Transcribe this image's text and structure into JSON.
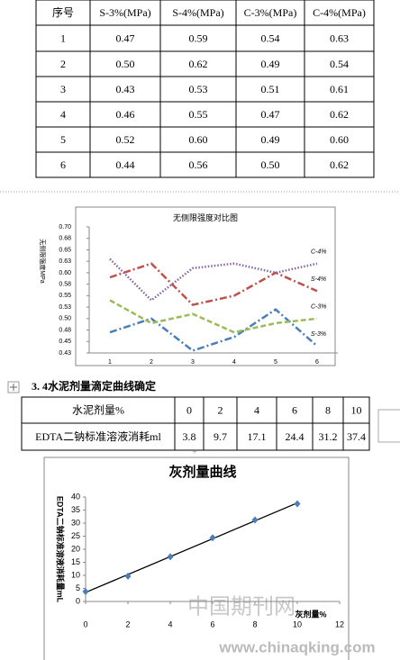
{
  "table1": {
    "header": [
      "序号",
      "S-3%(MPa)",
      "S-4%(MPa)",
      "C-3%(MPa)",
      "C-4%(MPa)"
    ],
    "rows": [
      [
        "1",
        "0.47",
        "0.59",
        "0.54",
        "0.63"
      ],
      [
        "2",
        "0.50",
        "0.62",
        "0.49",
        "0.54"
      ],
      [
        "3",
        "0.43",
        "0.53",
        "0.51",
        "0.61"
      ],
      [
        "4",
        "0.46",
        "0.55",
        "0.47",
        "0.62"
      ],
      [
        "5",
        "0.52",
        "0.60",
        "0.49",
        "0.60"
      ],
      [
        "6",
        "0.44",
        "0.56",
        "0.50",
        "0.62"
      ]
    ]
  },
  "chart_data": [
    {
      "type": "line",
      "title": "无侧限强度对比图",
      "y_label": "无侧限强度MPa",
      "categories": [
        1,
        2,
        3,
        4,
        5,
        6
      ],
      "ylim": [
        0.425,
        0.7
      ],
      "yticks": [
        {
          "value": 0.7,
          "label": "0.70"
        },
        {
          "value": 0.675,
          "label": "0.68"
        },
        {
          "value": 0.65,
          "label": "0.65"
        },
        {
          "value": 0.625,
          "label": "0.63"
        },
        {
          "value": 0.6,
          "label": "0.60"
        },
        {
          "value": 0.575,
          "label": "0.58"
        },
        {
          "value": 0.55,
          "label": "0.55"
        },
        {
          "value": 0.525,
          "label": "0.53"
        },
        {
          "value": 0.5,
          "label": "0.50"
        },
        {
          "value": 0.475,
          "label": "0.48"
        },
        {
          "value": 0.45,
          "label": "0.45"
        },
        {
          "value": 0.425,
          "label": "0.43"
        }
      ],
      "series": [
        {
          "name": "S-3%",
          "color": "#4a7ebb",
          "dash": "dashdot",
          "values": [
            0.47,
            0.5,
            0.43,
            0.46,
            0.52,
            0.44
          ]
        },
        {
          "name": "S-4%",
          "color": "#c0504d",
          "dash": "dashdot",
          "values": [
            0.59,
            0.62,
            0.53,
            0.55,
            0.6,
            0.56
          ]
        },
        {
          "name": "C-3%",
          "color": "#9bbb59",
          "dash": "dash",
          "values": [
            0.54,
            0.49,
            0.51,
            0.47,
            0.49,
            0.5
          ]
        },
        {
          "name": "C-4%",
          "color": "#8064a2",
          "dash": "dot",
          "values": [
            0.63,
            0.54,
            0.61,
            0.62,
            0.6,
            0.62
          ]
        }
      ]
    },
    {
      "type": "scatter",
      "title": "灰剂量曲线",
      "x_label": "灰剂量%",
      "y_label": "EDTA二钠标准溶液消耗量mL",
      "x": [
        0,
        2,
        4,
        6,
        8,
        10
      ],
      "values": [
        3.8,
        9.7,
        17.1,
        24.4,
        31.2,
        37.4
      ],
      "color": "#4a7ebb",
      "xlim": [
        0,
        12
      ],
      "xticks": [
        0,
        2,
        4,
        6,
        8,
        10,
        12
      ],
      "ylim": [
        0,
        40
      ],
      "yticks": [
        0,
        5,
        10,
        15,
        20,
        25,
        30,
        35,
        40
      ],
      "trendline": "linear"
    }
  ],
  "section_heading": "3. 4水泥剂量滴定曲线确定",
  "table2": {
    "rows": [
      [
        "水泥剂量%",
        "0",
        "2",
        "4",
        "6",
        "8",
        "10"
      ],
      [
        "EDTA二钠标准溶液消耗ml",
        "3.8",
        "9.7",
        "17.1",
        "24.4",
        "31.2",
        "37.4"
      ]
    ]
  },
  "watermark": [
    "中国期刊网",
    "www.chinaqking.com"
  ]
}
